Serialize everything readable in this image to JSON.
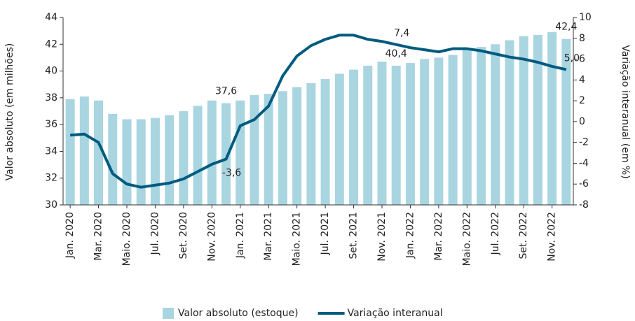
{
  "chart_data": {
    "type": "bar-line",
    "y_label": "Valor absoluto (em milhões)",
    "y2_label": "Variação interanual (em %)",
    "categories": [
      "Jan. 2020",
      null,
      "Mar. 2020",
      null,
      "Maio. 2020",
      null,
      "Jul. 2020",
      null,
      "Set. 2020",
      null,
      "Nov. 2020",
      null,
      "Jan. 2021",
      null,
      "Mar. 2021",
      null,
      "Maio. 2021",
      null,
      "Jul. 2021",
      null,
      "Set. 2021",
      null,
      "Nov. 2021",
      null,
      "Jan. 2022",
      null,
      "Mar. 2022",
      null,
      "Maio. 2022",
      null,
      "Jul. 2022",
      null,
      "Set. 2022",
      null,
      "Nov. 2022",
      null
    ],
    "series": [
      {
        "name": "Valor absoluto (estoque)",
        "type": "bar",
        "axis": "y",
        "color": "#a9d5e1",
        "values": [
          37.9,
          38.1,
          37.8,
          36.8,
          36.4,
          36.4,
          36.5,
          36.7,
          37.0,
          37.4,
          37.8,
          37.6,
          37.8,
          38.2,
          38.3,
          38.5,
          38.8,
          39.1,
          39.4,
          39.8,
          40.1,
          40.4,
          40.7,
          40.4,
          40.6,
          40.9,
          41.0,
          41.2,
          41.6,
          41.8,
          42.0,
          42.3,
          42.6,
          42.7,
          42.9,
          42.4
        ],
        "value_labels": [
          null,
          null,
          null,
          null,
          null,
          null,
          null,
          null,
          null,
          null,
          null,
          "37,6",
          null,
          null,
          null,
          null,
          null,
          null,
          null,
          null,
          null,
          null,
          null,
          "40,4",
          null,
          null,
          null,
          null,
          null,
          null,
          null,
          null,
          null,
          null,
          null,
          "42,4"
        ]
      },
      {
        "name": "Variação interanual",
        "type": "line",
        "axis": "y2",
        "color": "#005b7f",
        "values": [
          -1.3,
          -1.2,
          -2.0,
          -5.0,
          -6.0,
          -6.3,
          -6.1,
          -5.9,
          -5.5,
          -4.8,
          -4.1,
          -3.6,
          -0.4,
          0.2,
          1.5,
          4.4,
          6.3,
          7.3,
          7.9,
          8.3,
          8.3,
          7.9,
          7.7,
          7.4,
          7.1,
          6.9,
          6.7,
          7.0,
          7.0,
          6.8,
          6.5,
          6.2,
          6.0,
          5.7,
          5.3,
          5.0
        ],
        "value_labels": [
          null,
          null,
          null,
          null,
          null,
          null,
          null,
          null,
          null,
          null,
          null,
          "-3,6",
          null,
          null,
          null,
          null,
          null,
          null,
          null,
          null,
          null,
          null,
          null,
          "7,4",
          null,
          null,
          null,
          null,
          null,
          null,
          null,
          null,
          null,
          null,
          null,
          "5,0"
        ]
      }
    ],
    "ylim": [
      30,
      44
    ],
    "yticks": [
      30,
      32,
      34,
      36,
      38,
      40,
      42,
      44
    ],
    "y2lim": [
      -8,
      10
    ],
    "y2ticks": [
      -8,
      -6,
      -4,
      -2,
      0,
      2,
      4,
      6,
      8,
      10
    ],
    "legend": "bottom"
  }
}
